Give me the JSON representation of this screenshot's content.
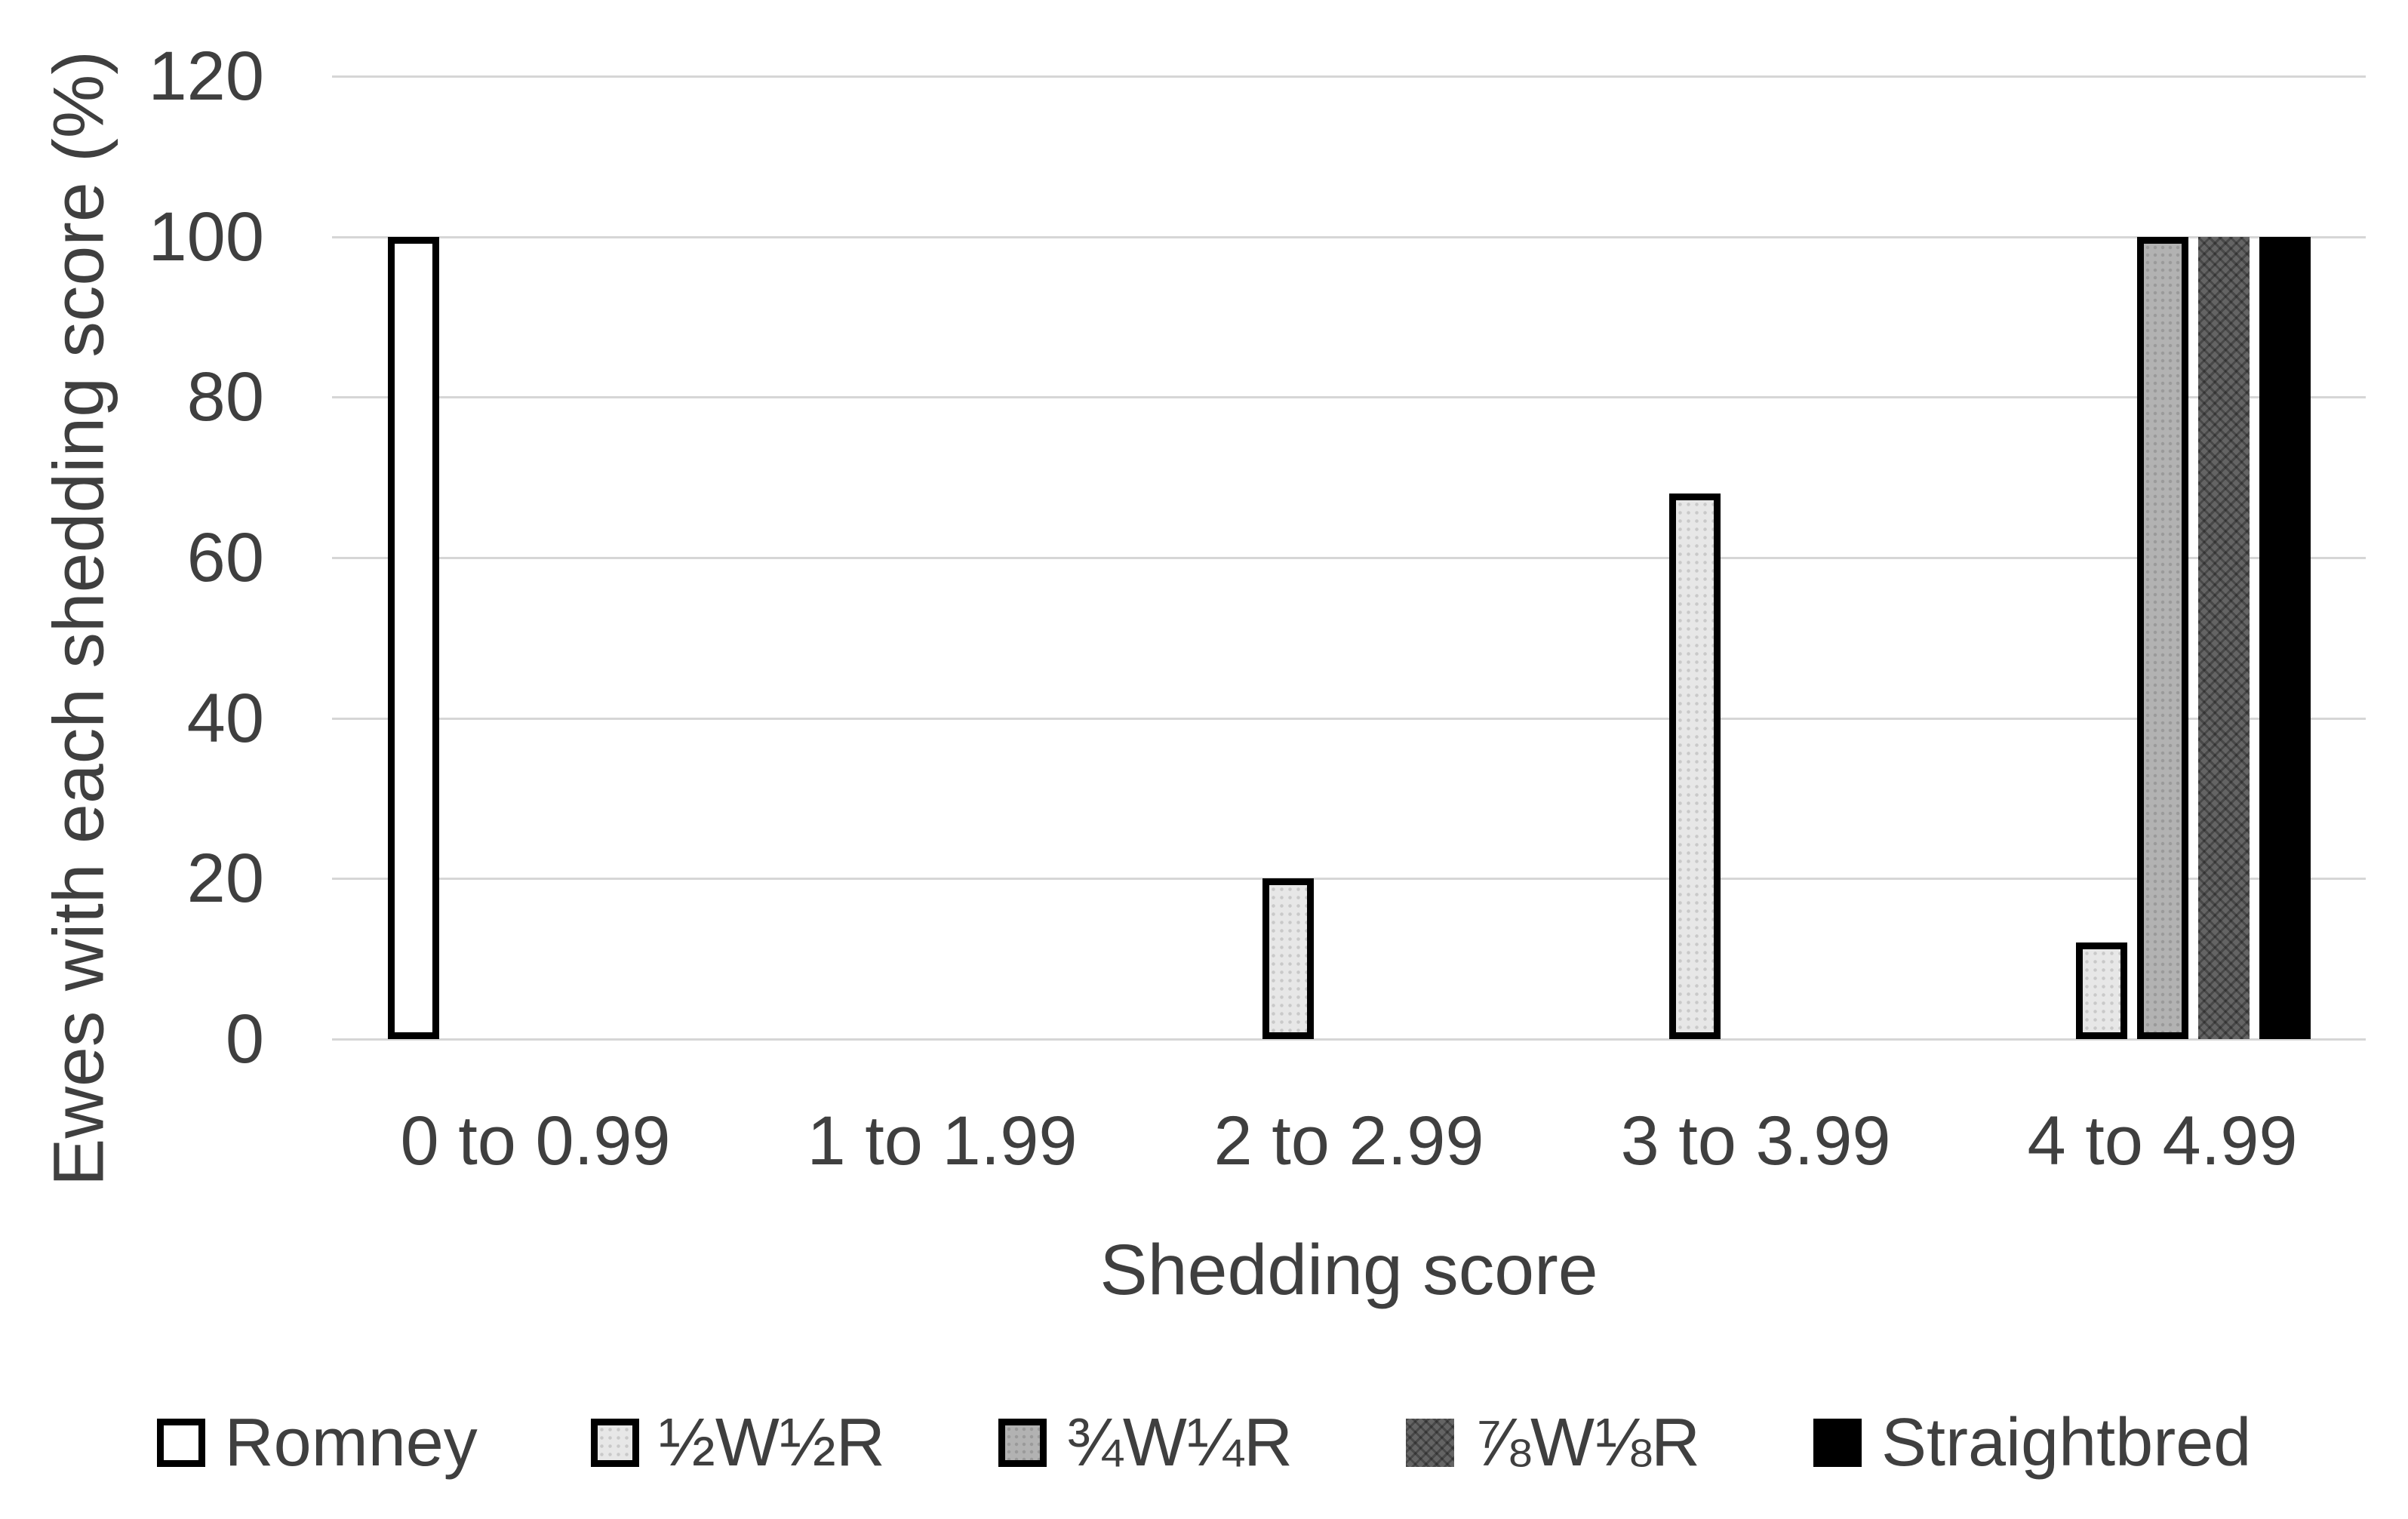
{
  "chart_data": {
    "type": "bar",
    "title": "",
    "xlabel": "Shedding score",
    "ylabel": "Ewes with each shedding score (%)",
    "categories": [
      "0 to 0.99",
      "1 to 1.99",
      "2 to 2.99",
      "3 to 3.99",
      "4 to 4.99"
    ],
    "series": [
      {
        "name": "Romney",
        "values": [
          100,
          0,
          0,
          0,
          0
        ],
        "fill": "#ffffff",
        "border": "#000000",
        "pattern": "none"
      },
      {
        "name": "½W½R",
        "values": [
          0,
          0,
          20,
          68,
          12
        ],
        "fill": "#e7e7e7",
        "border": "#000000",
        "pattern": "dots-light"
      },
      {
        "name": "¾W¼R",
        "values": [
          0,
          0,
          0,
          0,
          100
        ],
        "fill": "#b2b2b2",
        "border": "#000000",
        "pattern": "dots"
      },
      {
        "name": "⅞W⅛R",
        "values": [
          0,
          0,
          0,
          0,
          100
        ],
        "fill": "#646464",
        "border": "none",
        "pattern": "zigzag"
      },
      {
        "name": "Straightbred",
        "values": [
          0,
          0,
          0,
          0,
          100
        ],
        "fill": "#000000",
        "border": "none",
        "pattern": "none"
      }
    ],
    "ylim": [
      0,
      120
    ],
    "yticks": [
      0,
      20,
      40,
      60,
      80,
      100,
      120
    ],
    "grid": true,
    "legend_position": "bottom",
    "gridline_color": "#d6d6d6",
    "text_color": "#3f3f3f"
  }
}
